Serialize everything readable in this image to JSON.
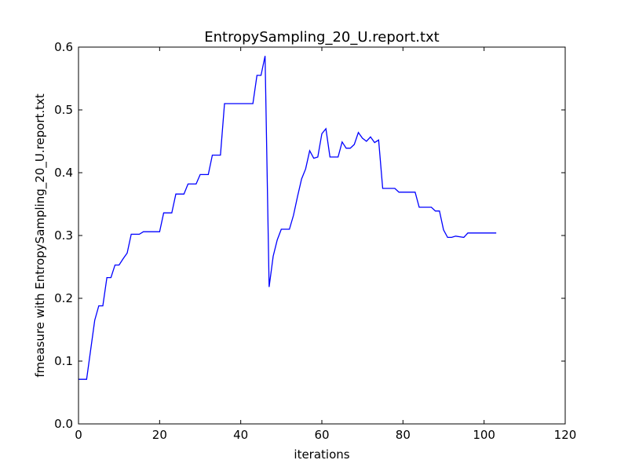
{
  "chart_data": {
    "type": "line",
    "title": "EntropySampling_20_U.report.txt",
    "xlabel": "iterations",
    "ylabel": "fmeasure with EntropySampling_20_U.report.txt",
    "xlim": [
      0,
      120
    ],
    "ylim": [
      0.0,
      0.6
    ],
    "xticks": [
      "0",
      "20",
      "40",
      "60",
      "80",
      "100",
      "120"
    ],
    "yticks": [
      "0.0",
      "0.1",
      "0.2",
      "0.3",
      "0.4",
      "0.5",
      "0.6"
    ],
    "grid": false,
    "legend": "none",
    "series": [
      {
        "color": "#0000ff",
        "x": [
          0,
          1,
          2,
          3,
          4,
          5,
          6,
          7,
          8,
          9,
          10,
          11,
          12,
          13,
          14,
          15,
          16,
          17,
          18,
          19,
          20,
          21,
          22,
          23,
          24,
          25,
          26,
          27,
          28,
          29,
          30,
          31,
          32,
          33,
          34,
          35,
          36,
          37,
          38,
          39,
          40,
          41,
          42,
          43,
          44,
          45,
          46,
          47,
          48,
          49,
          50,
          51,
          52,
          53,
          54,
          55,
          56,
          57,
          58,
          59,
          60,
          61,
          62,
          63,
          64,
          65,
          66,
          67,
          68,
          69,
          70,
          71,
          72,
          73,
          74,
          75,
          76,
          77,
          78,
          79,
          80,
          81,
          82,
          83,
          84,
          85,
          86,
          87,
          88,
          89,
          90,
          91,
          92,
          93,
          94,
          95,
          96,
          97,
          98,
          99,
          100,
          101,
          102,
          103
        ],
        "y": [
          0.071,
          0.071,
          0.071,
          0.118,
          0.165,
          0.188,
          0.188,
          0.233,
          0.233,
          0.253,
          0.253,
          0.263,
          0.272,
          0.302,
          0.302,
          0.302,
          0.306,
          0.306,
          0.306,
          0.306,
          0.306,
          0.336,
          0.336,
          0.336,
          0.366,
          0.366,
          0.366,
          0.382,
          0.382,
          0.382,
          0.397,
          0.397,
          0.397,
          0.428,
          0.428,
          0.428,
          0.51,
          0.51,
          0.51,
          0.51,
          0.51,
          0.51,
          0.51,
          0.51,
          0.555,
          0.555,
          0.586,
          0.218,
          0.267,
          0.293,
          0.31,
          0.31,
          0.31,
          0.332,
          0.362,
          0.39,
          0.406,
          0.435,
          0.423,
          0.425,
          0.462,
          0.47,
          0.425,
          0.425,
          0.425,
          0.449,
          0.439,
          0.439,
          0.445,
          0.464,
          0.455,
          0.45,
          0.457,
          0.448,
          0.452,
          0.375,
          0.375,
          0.375,
          0.375,
          0.369,
          0.369,
          0.369,
          0.369,
          0.369,
          0.345,
          0.345,
          0.345,
          0.345,
          0.339,
          0.339,
          0.309,
          0.297,
          0.297,
          0.299,
          0.298,
          0.297,
          0.304,
          0.304,
          0.304,
          0.304,
          0.304,
          0.304,
          0.304,
          0.304
        ]
      }
    ]
  }
}
